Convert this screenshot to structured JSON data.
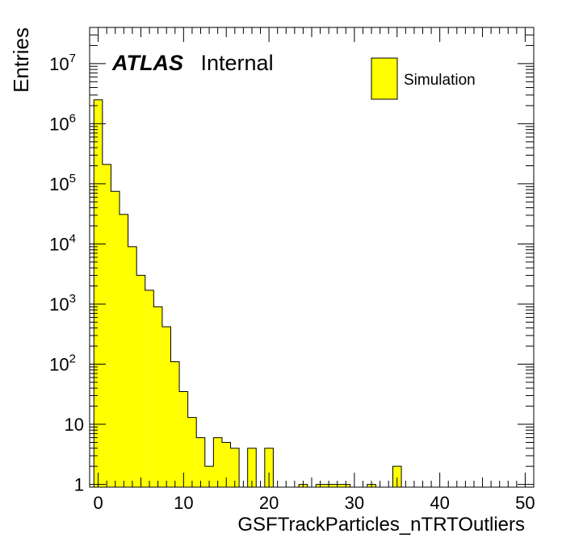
{
  "chart_data": {
    "type": "bar",
    "style": "histogram-step-filled",
    "xlabel": "GSFTrackParticles_nTRTOutliers",
    "ylabel": "Entries",
    "xlim": [
      -1,
      51
    ],
    "ylim": [
      0.9,
      40000000
    ],
    "log_y": true,
    "grid": false,
    "bin_width": 1,
    "x_tick_labels": [
      "0",
      "10",
      "20",
      "30",
      "40",
      "50"
    ],
    "y_tick_labels": [
      {
        "base": "1",
        "exp": ""
      },
      {
        "base": "10",
        "exp": ""
      },
      {
        "base": "10",
        "exp": "2"
      },
      {
        "base": "10",
        "exp": "3"
      },
      {
        "base": "10",
        "exp": "4"
      },
      {
        "base": "10",
        "exp": "5"
      },
      {
        "base": "10",
        "exp": "6"
      },
      {
        "base": "10",
        "exp": "7"
      }
    ],
    "bins": [
      {
        "x": -0.5,
        "value": 2500000
      },
      {
        "x": 0.5,
        "value": 210000
      },
      {
        "x": 1.5,
        "value": 75000
      },
      {
        "x": 2.5,
        "value": 31000
      },
      {
        "x": 3.5,
        "value": 9000
      },
      {
        "x": 4.5,
        "value": 3000
      },
      {
        "x": 5.5,
        "value": 1700
      },
      {
        "x": 6.5,
        "value": 900
      },
      {
        "x": 7.5,
        "value": 420
      },
      {
        "x": 8.5,
        "value": 110
      },
      {
        "x": 9.5,
        "value": 35
      },
      {
        "x": 10.5,
        "value": 13
      },
      {
        "x": 11.5,
        "value": 6
      },
      {
        "x": 12.5,
        "value": 2
      },
      {
        "x": 13.5,
        "value": 6
      },
      {
        "x": 14.5,
        "value": 5
      },
      {
        "x": 15.5,
        "value": 4
      },
      {
        "x": 17.5,
        "value": 4
      },
      {
        "x": 19.5,
        "value": 4
      },
      {
        "x": 23.5,
        "value": 1
      },
      {
        "x": 25.5,
        "value": 1
      },
      {
        "x": 26.5,
        "value": 1
      },
      {
        "x": 27.5,
        "value": 1
      },
      {
        "x": 28.5,
        "value": 1
      },
      {
        "x": 31.5,
        "value": 1
      },
      {
        "x": 34.5,
        "value": 2
      }
    ],
    "fill_color": "#ffff00",
    "line_color": "#000000",
    "legend": {
      "label": "Simulation",
      "position": "top-right"
    },
    "atlas_label": {
      "bold": "ATLAS",
      "text": "Internal"
    }
  }
}
